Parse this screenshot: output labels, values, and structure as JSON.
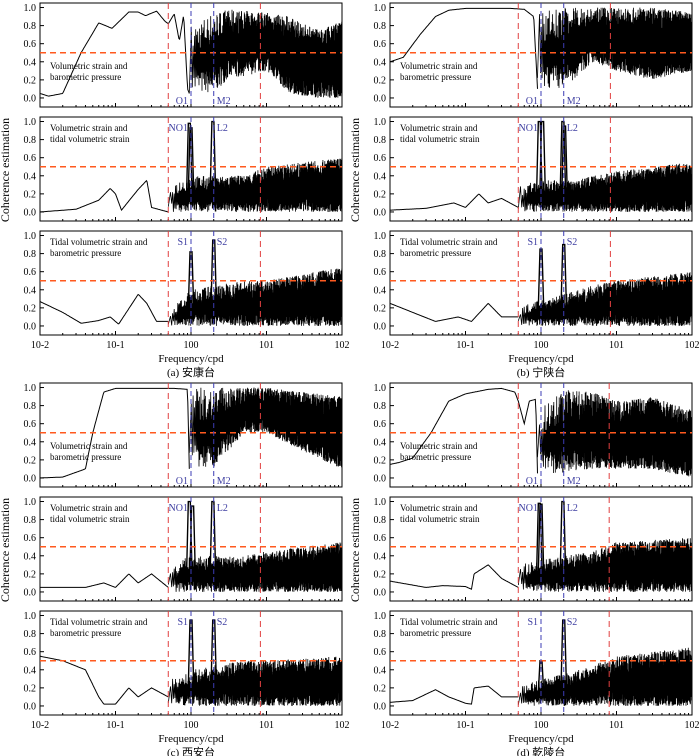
{
  "y_axis_label": "Coherence estimation",
  "x_axis_label": "Frequency/cpd",
  "colors": {
    "curve": "#000000",
    "threshold": "#ff5a1f",
    "band_limit": "#e04040",
    "tidal_line": "#3c3cb4",
    "tidal_label": "#3c3ca0"
  },
  "chart_data": [
    {
      "type": "line",
      "caption": "(a) 安康台",
      "xscale": "log",
      "xlim": [
        0.01,
        100
      ],
      "ylim": [
        -0.1,
        1.05
      ],
      "xticks": [
        "10-2",
        "10-1",
        "100",
        "101",
        "102"
      ],
      "yticks": [
        "0.0",
        "0.2",
        "0.4",
        "0.6",
        "0.8",
        "1.0"
      ],
      "threshold": 0.5,
      "band_limits": [
        0.5,
        8.3
      ],
      "tidal_lines": [
        1.0,
        2.0
      ],
      "subplots": [
        {
          "label": [
            "Volumetric strain and",
            "barometric pressure"
          ],
          "tides": [
            "O1",
            "M2"
          ],
          "x": [
            0.01,
            0.013,
            0.02,
            0.035,
            0.06,
            0.09,
            0.15,
            0.2,
            0.25,
            0.35,
            0.45,
            0.5,
            0.6,
            0.7,
            0.8,
            0.9,
            0.95
          ],
          "y": [
            0.05,
            0.02,
            0.05,
            0.5,
            0.83,
            0.77,
            0.95,
            0.95,
            0.91,
            0.96,
            0.85,
            0.82,
            0.93,
            0.63,
            0.92,
            0.1,
            0.05
          ],
          "noise": {
            "x": [
              0.95,
              2,
              3,
              10,
              20,
              50,
              100
            ],
            "low": [
              0.05,
              0.05,
              0.2,
              0.3,
              0.05,
              0,
              0
            ],
            "high": [
              0.8,
              0.95,
              0.98,
              0.95,
              0.9,
              0.75,
              0.85
            ]
          }
        },
        {
          "label": [
            "Volumetric strain and",
            "tidal volumetric strain"
          ],
          "tides": [
            "NO1",
            "L2"
          ],
          "x": [
            0.01,
            0.03,
            0.06,
            0.085,
            0.1,
            0.12,
            0.2,
            0.26,
            0.3,
            0.5
          ],
          "y": [
            0,
            0.03,
            0.13,
            0.26,
            0.2,
            0.02,
            0.25,
            0.35,
            0.05,
            0
          ],
          "peaks": [
            [
              0.95,
              0.98
            ],
            [
              1.0,
              0.93
            ],
            [
              1.95,
              1.0
            ]
          ],
          "noise": {
            "x": [
              0.5,
              1,
              2,
              5,
              10,
              100
            ],
            "low": [
              0,
              0,
              0,
              0,
              0,
              0
            ],
            "high": [
              0.3,
              0.4,
              0.4,
              0.4,
              0.5,
              0.6
            ]
          }
        },
        {
          "label": [
            "Tidal volumetric strain and",
            "barometric pressure"
          ],
          "tides": [
            "S1",
            "S2"
          ],
          "x": [
            0.01,
            0.02,
            0.035,
            0.06,
            0.085,
            0.11,
            0.2,
            0.26,
            0.35,
            0.5
          ],
          "y": [
            0.27,
            0.15,
            0.03,
            0.06,
            0.1,
            0.02,
            0.35,
            0.25,
            0.05,
            0.05
          ],
          "peaks": [
            [
              1.0,
              0.82
            ],
            [
              2.0,
              0.95
            ]
          ],
          "noise": {
            "x": [
              0.5,
              1,
              2,
              5,
              10,
              100
            ],
            "low": [
              0,
              0,
              0,
              0,
              0,
              0
            ],
            "high": [
              0.15,
              0.4,
              0.45,
              0.5,
              0.5,
              0.65
            ]
          }
        }
      ]
    },
    {
      "type": "line",
      "caption": "(b) 宁陕台",
      "xscale": "log",
      "xlim": [
        0.01,
        100
      ],
      "ylim": [
        -0.1,
        1.05
      ],
      "xticks": [
        "10-2",
        "10-1",
        "100",
        "101",
        "102"
      ],
      "yticks": [
        "0.0",
        "0.2",
        "0.4",
        "0.6",
        "0.8",
        "1.0"
      ],
      "threshold": 0.5,
      "band_limits": [
        0.5,
        8.3
      ],
      "tidal_lines": [
        1.0,
        2.0
      ],
      "subplots": [
        {
          "label": [
            "Volumetric strain and",
            "barometric pressure"
          ],
          "tides": [
            "O1",
            "M2"
          ],
          "x": [
            0.01,
            0.015,
            0.025,
            0.04,
            0.06,
            0.1,
            0.2,
            0.4,
            0.6,
            0.8,
            0.9
          ],
          "y": [
            0.4,
            0.45,
            0.7,
            0.9,
            0.97,
            0.99,
            0.99,
            0.99,
            0.98,
            0.9,
            0.1
          ],
          "noise": {
            "x": [
              0.9,
              2,
              5,
              10,
              30,
              100
            ],
            "low": [
              0.1,
              0.1,
              0.4,
              0.3,
              0.2,
              0.3
            ],
            "high": [
              0.95,
              1.0,
              1.0,
              1.0,
              1.0,
              0.95
            ]
          }
        },
        {
          "label": [
            "Volumetric strain and",
            "tidal volumetric strain"
          ],
          "tides": [
            "NO1",
            "L2"
          ],
          "x": [
            0.01,
            0.03,
            0.07,
            0.1,
            0.15,
            0.2,
            0.3,
            0.5
          ],
          "y": [
            0.02,
            0.04,
            0.1,
            0.05,
            0.2,
            0.1,
            0.15,
            0.05
          ],
          "peaks": [
            [
              0.95,
              1.0
            ],
            [
              1.05,
              1.0
            ],
            [
              1.95,
              1.0
            ],
            [
              2.05,
              0.95
            ]
          ],
          "noise": {
            "x": [
              0.5,
              1,
              2,
              5,
              10,
              100
            ],
            "low": [
              0,
              0,
              0,
              0,
              0,
              0
            ],
            "high": [
              0.3,
              0.35,
              0.35,
              0.4,
              0.45,
              0.55
            ]
          }
        },
        {
          "label": [
            "Tidal volumetric strain and",
            "barometric pressure"
          ],
          "tides": [
            "S1",
            "S2"
          ],
          "x": [
            0.01,
            0.02,
            0.04,
            0.08,
            0.12,
            0.2,
            0.3,
            0.5
          ],
          "y": [
            0.25,
            0.15,
            0.05,
            0.1,
            0.05,
            0.25,
            0.1,
            0.1
          ],
          "peaks": [
            [
              1.0,
              0.85
            ],
            [
              2.0,
              0.9
            ]
          ],
          "noise": {
            "x": [
              0.5,
              1,
              2,
              5,
              10,
              100
            ],
            "low": [
              0,
              0,
              0,
              0,
              0,
              0
            ],
            "high": [
              0.2,
              0.3,
              0.35,
              0.45,
              0.5,
              0.6
            ]
          }
        }
      ]
    },
    {
      "type": "line",
      "caption": "(c) 西安台",
      "xscale": "log",
      "xlim": [
        0.01,
        100
      ],
      "ylim": [
        -0.1,
        1.05
      ],
      "xticks": [
        "10-2",
        "10-1",
        "100",
        "101",
        "102"
      ],
      "yticks": [
        "0.0",
        "0.2",
        "0.4",
        "0.6",
        "0.8",
        "1.0"
      ],
      "threshold": 0.5,
      "band_limits": [
        0.5,
        8.3
      ],
      "tidal_lines": [
        1.0,
        2.0
      ],
      "subplots": [
        {
          "label": [
            "Volumetric strain and",
            "barometric pressure"
          ],
          "tides": [
            "O1",
            "M2"
          ],
          "x": [
            0.01,
            0.02,
            0.04,
            0.05,
            0.07,
            0.1,
            0.2,
            0.4,
            0.6,
            0.9,
            0.95
          ],
          "y": [
            0.0,
            0.01,
            0.1,
            0.5,
            0.95,
            0.99,
            0.99,
            0.99,
            0.99,
            0.98,
            0.1
          ],
          "noise": {
            "x": [
              0.95,
              2,
              5,
              10,
              30,
              100
            ],
            "low": [
              0.1,
              0.1,
              0.5,
              0.5,
              0.3,
              0.1
            ],
            "high": [
              1.0,
              1.0,
              1.0,
              1.0,
              0.95,
              0.9
            ]
          }
        },
        {
          "label": [
            "Volumetric strain and",
            "tidal volumetric strain"
          ],
          "tides": [
            "NO1",
            "L2"
          ],
          "x": [
            0.01,
            0.04,
            0.07,
            0.1,
            0.15,
            0.2,
            0.3,
            0.5
          ],
          "y": [
            0.05,
            0.05,
            0.1,
            0.05,
            0.2,
            0.1,
            0.2,
            0.05
          ],
          "peaks": [
            [
              0.95,
              1.0
            ],
            [
              1.05,
              0.95
            ],
            [
              1.95,
              1.0
            ]
          ],
          "noise": {
            "x": [
              0.5,
              1,
              2,
              5,
              10,
              100
            ],
            "low": [
              0,
              0,
              0,
              0,
              0,
              0
            ],
            "high": [
              0.3,
              0.4,
              0.4,
              0.4,
              0.45,
              0.55
            ]
          }
        },
        {
          "label": [
            "Tidal volumetric strain and",
            "barometric pressure"
          ],
          "tides": [
            "S1",
            "S2"
          ],
          "x": [
            0.01,
            0.02,
            0.04,
            0.06,
            0.07,
            0.1,
            0.15,
            0.2,
            0.3,
            0.5
          ],
          "y": [
            0.55,
            0.5,
            0.4,
            0.1,
            0.02,
            0.02,
            0.2,
            0.1,
            0.2,
            0.1
          ],
          "peaks": [
            [
              1.0,
              0.95
            ],
            [
              2.0,
              0.95
            ]
          ],
          "noise": {
            "x": [
              0.5,
              1,
              2,
              5,
              10,
              100
            ],
            "low": [
              0,
              0,
              0,
              0,
              0,
              0
            ],
            "high": [
              0.3,
              0.4,
              0.45,
              0.5,
              0.5,
              0.55
            ]
          }
        }
      ]
    },
    {
      "type": "line",
      "caption": "(d) 乾陵台",
      "xscale": "log",
      "xlim": [
        0.01,
        100
      ],
      "ylim": [
        -0.1,
        1.05
      ],
      "xticks": [
        "10-2",
        "10-1",
        "100",
        "101",
        "102"
      ],
      "yticks": [
        "0.0",
        "0.2",
        "0.4",
        "0.6",
        "0.8",
        "1.0"
      ],
      "threshold": 0.5,
      "band_limits": [
        0.5,
        8.0
      ],
      "tidal_lines": [
        1.0,
        2.0
      ],
      "subplots": [
        {
          "label": [
            "Volumetric strain and",
            "barometric pressure"
          ],
          "tides": [
            "O1",
            "M2"
          ],
          "x": [
            0.01,
            0.013,
            0.02,
            0.035,
            0.06,
            0.1,
            0.2,
            0.3,
            0.45,
            0.5,
            0.6,
            0.7,
            0.85,
            0.9
          ],
          "y": [
            0.15,
            0.17,
            0.22,
            0.5,
            0.85,
            0.93,
            0.98,
            0.99,
            0.95,
            0.85,
            0.6,
            0.85,
            0.87,
            0.05
          ],
          "noise": {
            "x": [
              0.9,
              2,
              5,
              10,
              30,
              100
            ],
            "low": [
              0.05,
              0.05,
              0.1,
              0.1,
              0.1,
              0.0
            ],
            "high": [
              0.75,
              0.98,
              0.95,
              0.85,
              0.9,
              0.75
            ]
          }
        },
        {
          "label": [
            "Volumetric strain and",
            "tidal volumetric strain"
          ],
          "tides": [
            "NO1",
            "L2"
          ],
          "x": [
            0.01,
            0.03,
            0.05,
            0.1,
            0.12,
            0.13,
            0.2,
            0.3,
            0.5
          ],
          "y": [
            0.12,
            0.05,
            0.07,
            0.06,
            0.03,
            0.2,
            0.3,
            0.15,
            0.05
          ],
          "peaks": [
            [
              0.95,
              0.98
            ],
            [
              1.0,
              0.97
            ],
            [
              1.95,
              1.0
            ]
          ],
          "noise": {
            "x": [
              0.5,
              1,
              2,
              5,
              10,
              100
            ],
            "low": [
              0,
              0,
              0,
              0,
              0,
              0
            ],
            "high": [
              0.3,
              0.35,
              0.4,
              0.45,
              0.55,
              0.6
            ]
          }
        },
        {
          "label": [
            "Tidal volumetric strain and",
            "barometric pressure"
          ],
          "tides": [
            "S1",
            "S2"
          ],
          "x": [
            0.01,
            0.02,
            0.04,
            0.06,
            0.1,
            0.12,
            0.13,
            0.2,
            0.3,
            0.5
          ],
          "y": [
            0.04,
            0.06,
            0.18,
            0.1,
            0.03,
            0.02,
            0.2,
            0.22,
            0.1,
            0.1
          ],
          "peaks": [
            [
              1.0,
              0.5
            ],
            [
              2.0,
              0.95
            ]
          ],
          "noise": {
            "x": [
              0.5,
              1,
              2,
              5,
              10,
              100
            ],
            "low": [
              0,
              0,
              0,
              0,
              0,
              0
            ],
            "high": [
              0.2,
              0.3,
              0.35,
              0.45,
              0.55,
              0.65
            ]
          }
        }
      ]
    }
  ]
}
